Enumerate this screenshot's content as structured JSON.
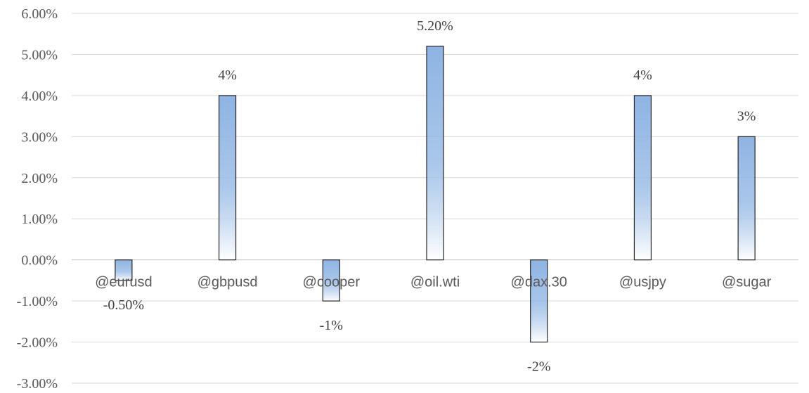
{
  "chart_data": {
    "type": "bar",
    "title": "",
    "xlabel": "",
    "ylabel": "",
    "categories": [
      "@eurusd",
      "@gbpusd",
      "@cooper",
      "@oil.wti",
      "@dax.30",
      "@usjpy",
      "@sugar"
    ],
    "values": [
      -0.5,
      4,
      -1,
      5.2,
      -2,
      4,
      3
    ],
    "data_labels": [
      "-0.50%",
      "4%",
      "-1%",
      "5.20%",
      "-2%",
      "4%",
      "3%"
    ],
    "ylim": [
      -3,
      6
    ],
    "yticks": [
      6,
      5,
      4,
      3,
      2,
      1,
      0,
      -1,
      -2,
      -3
    ],
    "ytick_labels": [
      "6.00%",
      "5.00%",
      "4.00%",
      "3.00%",
      "2.00%",
      "1.00%",
      "0.00%",
      "-1.00%",
      "-2.00%",
      "-3.00%"
    ],
    "grid": true,
    "legend": "none",
    "colors": {
      "bar_top": "#8eb4e3",
      "bar_bottom": "#ffffff",
      "bar_outline": "#262626"
    }
  }
}
